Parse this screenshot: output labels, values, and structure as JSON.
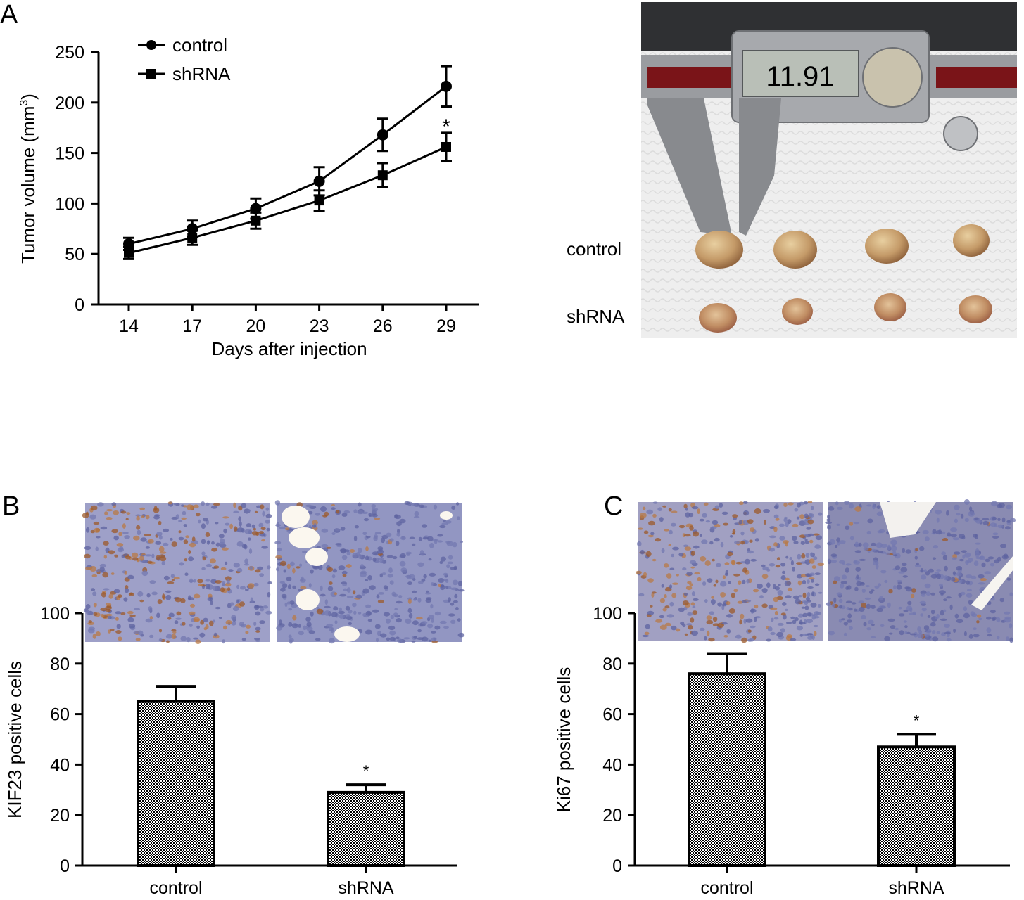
{
  "panels": {
    "a": "A",
    "b": "B",
    "c": "C"
  },
  "photo_labels": {
    "control": "control",
    "shrna": "shRNA"
  },
  "caliper_reading": "11.91",
  "colors": {
    "ink": "#000000",
    "tumor": "#c8a070",
    "paper": "#efefef",
    "caliper": "#8e9094",
    "stain_brown": "#a8652e",
    "stain_blue": "#8d92c4"
  },
  "chart_data": [
    {
      "type": "line",
      "panel": "A",
      "x": [
        14,
        17,
        20,
        23,
        26,
        29
      ],
      "xlabel": "Days after injection",
      "ylabel": "Tumor volume (mm3)",
      "ylim": [
        0,
        250
      ],
      "yticks": [
        0,
        50,
        100,
        150,
        200,
        250
      ],
      "legend_position": "top-left",
      "series": [
        {
          "name": "control",
          "marker": "circle",
          "values": [
            60,
            75,
            95,
            122,
            168,
            216
          ],
          "errors": [
            6,
            8,
            10,
            14,
            16,
            20
          ]
        },
        {
          "name": "shRNA",
          "marker": "square",
          "values": [
            51,
            66,
            83,
            103,
            128,
            156
          ],
          "errors": [
            6,
            7,
            8,
            10,
            12,
            14
          ]
        }
      ],
      "annotations": [
        {
          "text": "*",
          "x": 29
        }
      ]
    },
    {
      "type": "bar",
      "panel": "B",
      "categories": [
        "control",
        "shRNA"
      ],
      "values": [
        65,
        29
      ],
      "errors": [
        6,
        3
      ],
      "ylabel": "KIF23 positive cells",
      "ylim": [
        0,
        100
      ],
      "yticks": [
        0,
        20,
        40,
        60,
        80,
        100
      ],
      "annotations": [
        {
          "text": "*",
          "category": "shRNA"
        }
      ]
    },
    {
      "type": "bar",
      "panel": "C",
      "categories": [
        "control",
        "shRNA"
      ],
      "values": [
        76,
        47
      ],
      "errors": [
        8,
        5
      ],
      "ylabel": "Ki67 positive cells",
      "ylim": [
        0,
        100
      ],
      "yticks": [
        0,
        20,
        40,
        60,
        80,
        100
      ],
      "annotations": [
        {
          "text": "*",
          "category": "shRNA"
        }
      ]
    }
  ]
}
